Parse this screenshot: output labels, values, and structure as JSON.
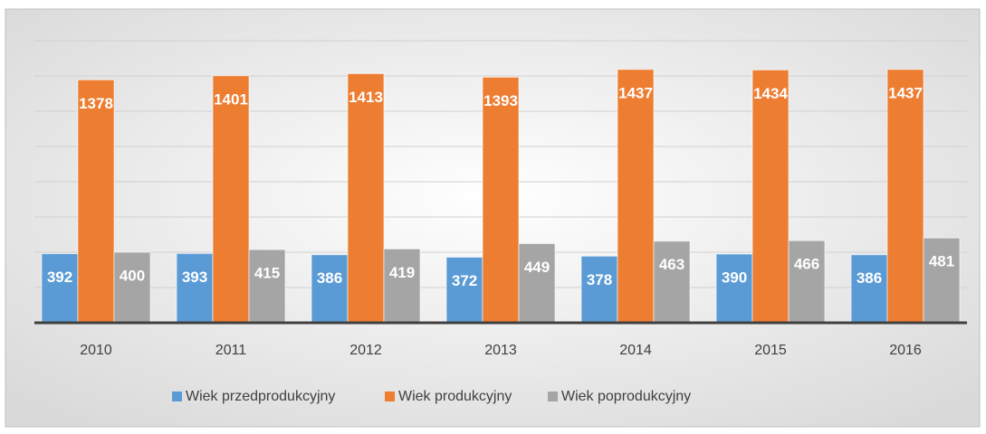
{
  "chart_data": {
    "type": "bar",
    "categories": [
      "2010",
      "2011",
      "2012",
      "2013",
      "2014",
      "2015",
      "2016"
    ],
    "series": [
      {
        "name": "Wiek przedprodukcyjny",
        "color": "#5b9bd5",
        "values": [
          392,
          393,
          386,
          372,
          378,
          390,
          386
        ]
      },
      {
        "name": "Wiek produkcyjny",
        "color": "#ed7d31",
        "values": [
          1378,
          1401,
          1413,
          1393,
          1437,
          1434,
          1437
        ]
      },
      {
        "name": "Wiek poprodukcyjny",
        "color": "#a5a5a5",
        "values": [
          400,
          415,
          419,
          449,
          463,
          466,
          481
        ]
      }
    ],
    "ylim": [
      0,
      1600
    ],
    "yticks": [
      0,
      200,
      400,
      600,
      800,
      1000,
      1200,
      1400,
      1600
    ],
    "grid": true,
    "legend": "bottom"
  }
}
